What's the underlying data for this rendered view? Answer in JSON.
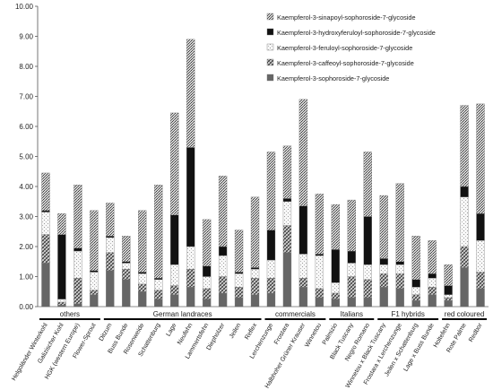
{
  "chart_data": {
    "type": "bar",
    "stacked": true,
    "ylim": [
      0,
      10
    ],
    "yticks": [
      "0.00",
      "1.00",
      "2.00",
      "3.00",
      "4.00",
      "5.00",
      "6.00",
      "7.00",
      "8.00",
      "9.00",
      "10.00"
    ],
    "legend_position": "top-right",
    "colors": {
      "sophoroside": "#666666",
      "caffeoyl": "#8a8a8a",
      "feruloyl": "#ececec",
      "hydroxyferuloyl": "#111111",
      "sinapoyl": "#b0b0b0"
    },
    "categories": [
      "Helgoländer Winterkohl",
      "Galizischer Kohl",
      "HGK (western Europe)",
      "Flower-Sprout",
      "Ditzum",
      "Buss Bunde",
      "Rosenweide",
      "Schattenburg",
      "Lage",
      "Neufehn",
      "Lammertsfehn",
      "Diepholzer",
      "Jeilen",
      "Reflex",
      "Lerchenzunge",
      "Frostara",
      "Halbhoher Grüner Krauser",
      "Winnetou",
      "Palmizio",
      "Black Tuscany",
      "Negro Romano",
      "Winnetou x Black Tuscany",
      "Frostara x Lerchenzunge",
      "Jeilen x Schattenburg",
      "Lage x Buss Bunde",
      "Holtefehn",
      "Rote Palme",
      "Redbor"
    ],
    "groups": [
      {
        "label": "others",
        "start": 0,
        "end": 3
      },
      {
        "label": "German landraces",
        "start": 4,
        "end": 13
      },
      {
        "label": "commercials",
        "start": 14,
        "end": 17
      },
      {
        "label": "Italians",
        "start": 18,
        "end": 20
      },
      {
        "label": "F1 hybrids",
        "start": 21,
        "end": 24
      },
      {
        "label": "red coloured",
        "start": 25,
        "end": 27
      }
    ],
    "series": [
      {
        "name": "Kaempferol-3-sophoroside-7-glycoside",
        "key": "sophoroside",
        "values": [
          1.45,
          0.05,
          0.1,
          0.4,
          1.2,
          0.9,
          0.5,
          0.25,
          0.4,
          0.65,
          0.25,
          0.45,
          0.3,
          0.4,
          0.45,
          1.8,
          0.65,
          0.3,
          0.25,
          0.3,
          0.3,
          0.65,
          0.6,
          0.2,
          0.4,
          0.2,
          1.3,
          0.6
        ]
      },
      {
        "name": "Kaempferol-3-caffeoyl-sophoroside-7-glycoside",
        "key": "caffeoyl",
        "values": [
          0.95,
          0.1,
          0.85,
          0.15,
          0.6,
          0.35,
          0.25,
          0.3,
          0.3,
          0.6,
          0.35,
          0.55,
          0.35,
          0.55,
          0.5,
          0.9,
          0.3,
          0.3,
          0.2,
          0.7,
          0.6,
          0.45,
          0.5,
          0.2,
          0.25,
          0.1,
          0.7,
          0.55
        ]
      },
      {
        "name": "Kaempferol-3-feruloyl-sophoroside-7-glycoside",
        "key": "feruloyl",
        "values": [
          0.75,
          0.1,
          0.9,
          0.6,
          0.5,
          0.2,
          0.35,
          0.35,
          0.7,
          0.75,
          0.4,
          0.7,
          0.45,
          0.3,
          0.6,
          0.8,
          0.8,
          1.1,
          0.35,
          0.45,
          0.5,
          0.3,
          0.3,
          0.25,
          0.3,
          0.1,
          1.65,
          1.05
        ]
      },
      {
        "name": "Kaempferol-3-hydroxyferuloyl-sophoroside-7-glycoside",
        "key": "hydroxyferuloyl",
        "values": [
          0.05,
          2.15,
          0.1,
          0.05,
          0.05,
          0.05,
          0.05,
          0.05,
          1.65,
          3.3,
          0.35,
          0.3,
          0.05,
          0.05,
          1.0,
          0.1,
          1.6,
          0.05,
          1.1,
          0.4,
          1.6,
          0.2,
          0.1,
          0.25,
          0.15,
          0.3,
          0.35,
          0.9
        ]
      },
      {
        "name": "Kaempferol-3-sinapoyl-sophoroside-7-glycoside",
        "key": "sinapoyl",
        "values": [
          1.25,
          0.7,
          2.1,
          2.0,
          1.1,
          0.85,
          2.05,
          3.1,
          3.4,
          3.6,
          1.55,
          2.35,
          1.4,
          2.35,
          2.6,
          1.75,
          3.55,
          2.0,
          1.5,
          1.7,
          2.15,
          2.1,
          2.6,
          1.45,
          1.1,
          0.7,
          2.7,
          3.65
        ]
      }
    ]
  }
}
